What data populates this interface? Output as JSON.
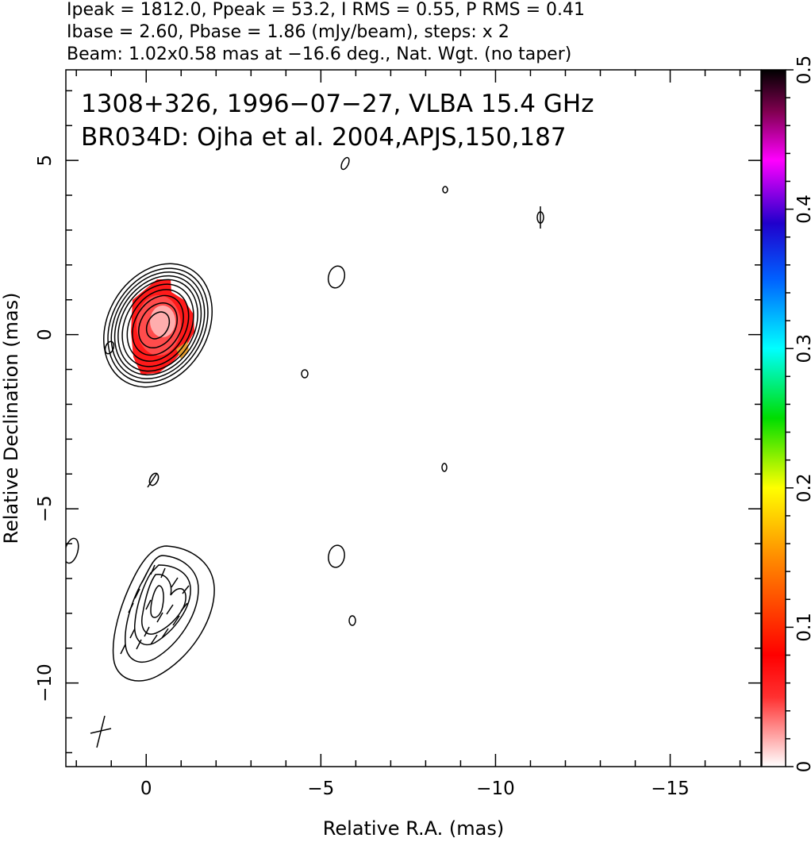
{
  "header": {
    "line1": "Ipeak = 1812.0, Ppeak = 53.2, I RMS = 0.55, P RMS = 0.41",
    "line2": "Ibase = 2.60, Pbase = 1.86 (mJy/beam), steps: x 2",
    "line3": "Beam: 1.02x0.58 mas at −16.6 deg., Nat. Wgt. (no taper)"
  },
  "chart_data": {
    "type": "contour",
    "source_label": "1308+326, 1996−07−27, VLBA 15.4 GHz",
    "reference_label": "BR034D: Ojha et al. 2004,APJS,150,187",
    "xlabel": "Relative R.A. (mas)",
    "ylabel": "Relative Declination (mas)",
    "xlim": [
      2.3,
      -17.6
    ],
    "ylim": [
      -12.4,
      7.6
    ],
    "x_ticks": [
      0,
      -5,
      -10,
      -15
    ],
    "x_tick_labels": [
      "0",
      "−5",
      "−10",
      "−15"
    ],
    "y_ticks": [
      5,
      0,
      -5,
      -10
    ],
    "y_tick_labels": [
      "5",
      "0",
      "−5",
      "−10"
    ],
    "colorbar": {
      "range": [
        0,
        0.5
      ],
      "ticks": [
        0,
        0.1,
        0.2,
        0.3,
        0.4,
        0.5
      ],
      "tick_labels": [
        "0",
        "0.1",
        "0.2",
        "0.3",
        "0.4",
        "0.5"
      ],
      "colormap": [
        "#ffffff",
        "#ff0000",
        "#ff7f00",
        "#ffff00",
        "#00ff00",
        "#00ffff",
        "#0000ff",
        "#ff00ff",
        "#000000"
      ]
    },
    "core": {
      "x": -0.3,
      "y": 0.2,
      "contour_levels": 10
    },
    "jet_component": {
      "x": -0.5,
      "y": -7.9
    },
    "beam": {
      "major_mas": 1.02,
      "minor_mas": 0.58,
      "pa_deg": -16.6,
      "x": 1.3,
      "y": -11.8
    }
  }
}
